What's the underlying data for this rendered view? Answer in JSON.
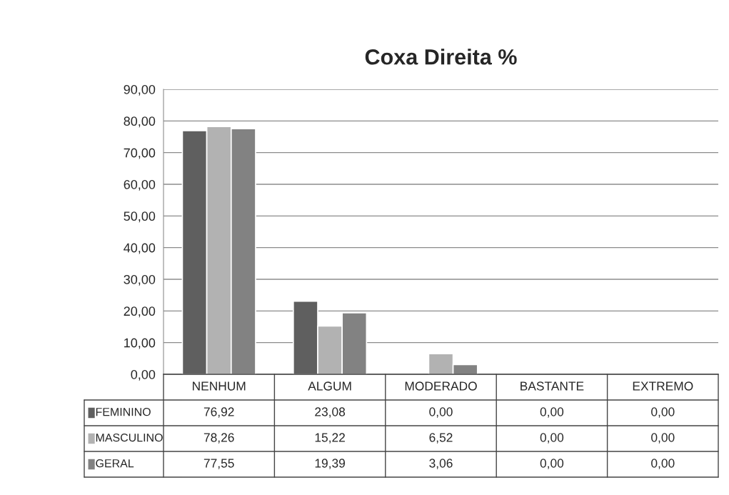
{
  "chart_data": {
    "type": "bar",
    "title": "Coxa Direita %",
    "categories": [
      "NENHUM",
      "ALGUM",
      "MODERADO",
      "BASTANTE",
      "EXTREMO"
    ],
    "series": [
      {
        "name": "FEMININO",
        "color": "#5f5f5f",
        "values": [
          76.92,
          23.08,
          0.0,
          0.0,
          0.0
        ],
        "value_labels": [
          "76,92",
          "23,08",
          "0,00",
          "0,00",
          "0,00"
        ]
      },
      {
        "name": "MASCULINO",
        "color": "#b2b2b2",
        "values": [
          78.26,
          15.22,
          6.52,
          0.0,
          0.0
        ],
        "value_labels": [
          "78,26",
          "15,22",
          "6,52",
          "0,00",
          "0,00"
        ]
      },
      {
        "name": "GERAL",
        "color": "#828282",
        "values": [
          77.55,
          19.39,
          3.06,
          0.0,
          0.0
        ],
        "value_labels": [
          "77,55",
          "19,39",
          "3,06",
          "0,00",
          "0,00"
        ]
      }
    ],
    "ylim": [
      0,
      90
    ],
    "yticks": [
      {
        "value": 0,
        "label": "0,00"
      },
      {
        "value": 10,
        "label": "10,00"
      },
      {
        "value": 20,
        "label": "20,00"
      },
      {
        "value": 30,
        "label": "30,00"
      },
      {
        "value": 40,
        "label": "40,00"
      },
      {
        "value": 50,
        "label": "50,00"
      },
      {
        "value": 60,
        "label": "60,00"
      },
      {
        "value": 70,
        "label": "70,00"
      },
      {
        "value": 80,
        "label": "80,00"
      },
      {
        "value": 90,
        "label": "90,00"
      }
    ],
    "grid": "y",
    "legend": "bottom"
  }
}
